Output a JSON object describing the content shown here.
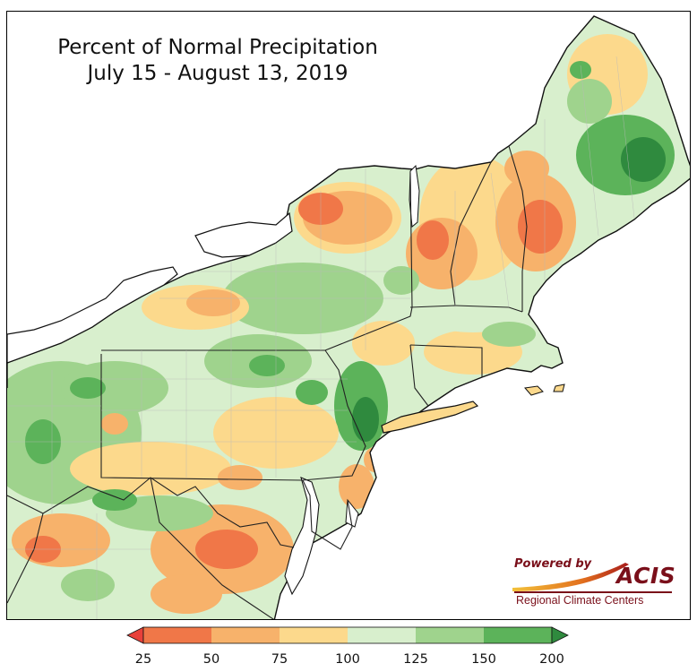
{
  "title": {
    "line1": "Percent of Normal Precipitation",
    "line2": "July 15 - August 13, 2019"
  },
  "logo": {
    "powered_by": "Powered by",
    "name": "ACIS",
    "subtitle": "Regional Climate Centers"
  },
  "legend": {
    "ticks": [
      "25",
      "50",
      "75",
      "100",
      "125",
      "150",
      "200"
    ],
    "bins": [
      {
        "from": "<25",
        "to": "25",
        "color": "#e8403a"
      },
      {
        "from": "25",
        "to": "50",
        "color": "#f07748"
      },
      {
        "from": "50",
        "to": "75",
        "color": "#f7b26b"
      },
      {
        "from": "75",
        "to": "100",
        "color": "#fcd98c"
      },
      {
        "from": "100",
        "to": "125",
        "color": "#d8efcd"
      },
      {
        "from": "125",
        "to": "150",
        "color": "#9fd38d"
      },
      {
        "from": "150",
        "to": "200",
        "color": "#5cb35a"
      },
      {
        "from": "200",
        "to": ">200",
        "color": "#2f8a3e"
      }
    ]
  },
  "colors": {
    "border": "#1a1a1a",
    "logo": "#7a0f1a",
    "water": "#ffffff"
  }
}
